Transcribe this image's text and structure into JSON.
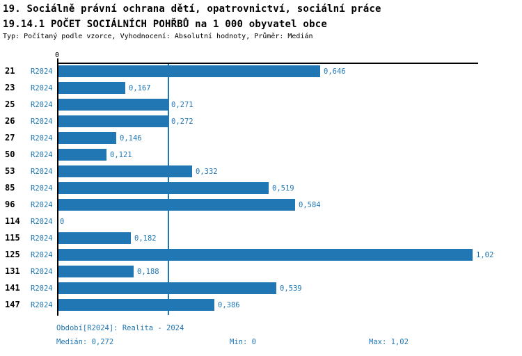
{
  "header": {
    "title_line1": "19. Sociálně právní ochrana dětí, opatrovnictví, sociální práce",
    "title_line2": "19.14.1 POČET SOCIÁLNÍCH POHŘBŮ na 1 000 obyvatel obce",
    "subtitle": "Typ: Počítaný podle vzorce, Vyhodnocení: Absolutní hodnoty, Průměr: Medián"
  },
  "chart_data": {
    "type": "bar",
    "orientation": "horizontal",
    "title": "19.14.1 POČET SOCIÁLNÍCH POHŘBŮ na 1 000 obyvatel obce",
    "categories": [
      "21",
      "23",
      "25",
      "26",
      "27",
      "50",
      "53",
      "85",
      "96",
      "114",
      "115",
      "125",
      "131",
      "141",
      "147"
    ],
    "series": [
      {
        "name": "R2024",
        "values": [
          0.646,
          0.167,
          0.271,
          0.272,
          0.146,
          0.121,
          0.332,
          0.519,
          0.584,
          0,
          0.182,
          1.02,
          0.188,
          0.539,
          0.386
        ],
        "value_labels": [
          "0,646",
          "0,167",
          "0,271",
          "0,272",
          "0,146",
          "0,121",
          "0,332",
          "0,519",
          "0,584",
          "0",
          "0,182",
          "1,02",
          "0,188",
          "0,539",
          "0,386"
        ]
      }
    ],
    "row_series_label": "R2024",
    "x_axis": {
      "tick_labels": [
        "0"
      ],
      "range": [
        0,
        1.034
      ],
      "grid": false
    },
    "median_value": 0.272,
    "min_value": 0,
    "max_value": 1.02,
    "bar_color": "#2077b4",
    "accent_text_color": "#2077b4",
    "legend_position": "none"
  },
  "footer": {
    "period": "Období[R2024]: Realita - 2024",
    "median": "Medián: 0,272",
    "min": "Min: 0",
    "max": "Max: 1,02"
  }
}
